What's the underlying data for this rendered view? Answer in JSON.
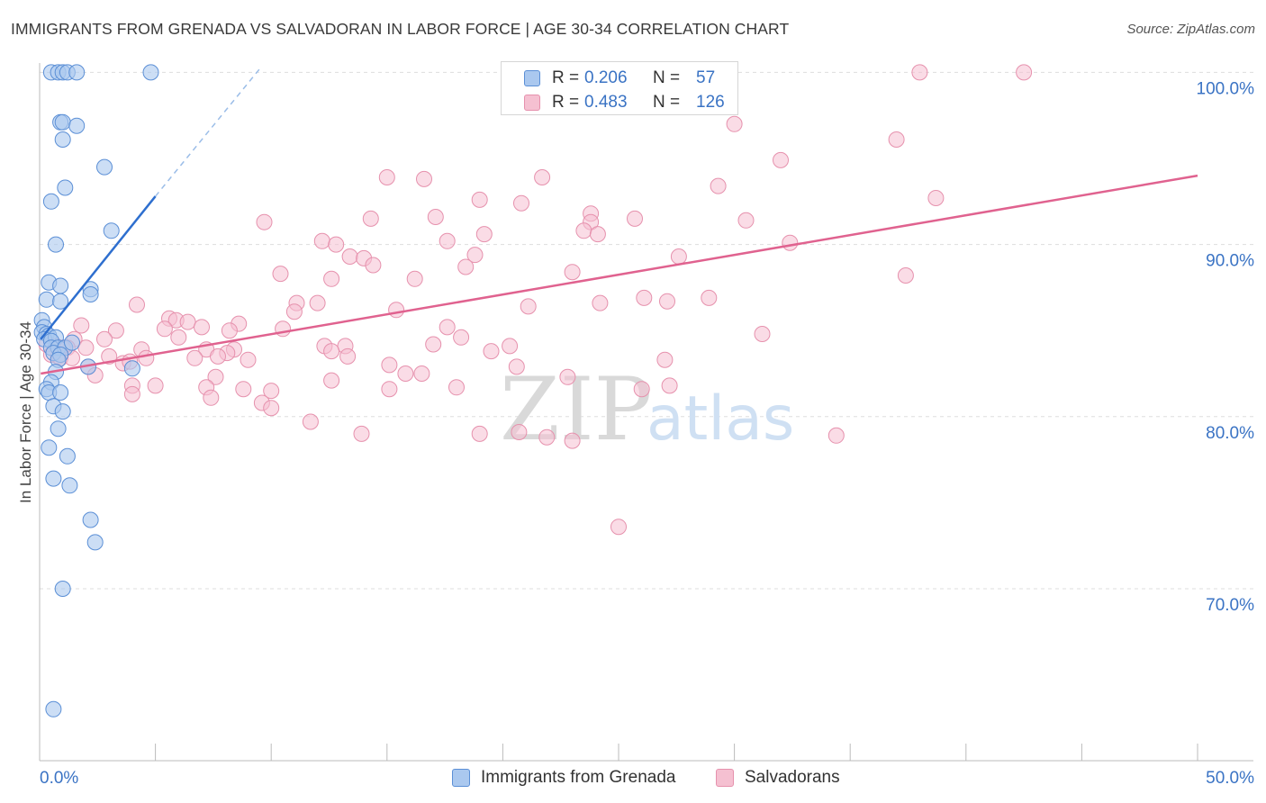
{
  "header": {
    "title": "IMMIGRANTS FROM GRENADA VS SALVADORAN IN LABOR FORCE | AGE 30-34 CORRELATION CHART",
    "source": "Source: ZipAtlas.com"
  },
  "watermark": {
    "zip": "ZIP",
    "atlas": "atlas"
  },
  "legend_top": {
    "r_label": "R =",
    "n_label": "N =",
    "rows": [
      {
        "r": "0.206",
        "n": "57"
      },
      {
        "r": "0.483",
        "n": "126"
      }
    ]
  },
  "colors": {
    "blue_fill": "#aac8ef",
    "blue_stroke": "#5b8fd6",
    "blue_line": "#2e6fcf",
    "pink_fill": "#f5c0d1",
    "pink_stroke": "#e691ad",
    "pink_line": "#e0628f",
    "axis_text": "#3a73c4",
    "grid": "#dddddd"
  },
  "chart_data": {
    "type": "scatter",
    "title": "IMMIGRANTS FROM GRENADA VS SALVADORAN IN LABOR FORCE | AGE 30-34 CORRELATION CHART",
    "xlabel": "",
    "ylabel": "In Labor Force | Age 30-34",
    "xlim": [
      0,
      50
    ],
    "ylim": [
      60,
      102
    ],
    "x_tick_labels": [
      "0.0%",
      "50.0%"
    ],
    "y_ticks": [
      70,
      80,
      90,
      100
    ],
    "y_tick_labels": [
      "70.0%",
      "80.0%",
      "90.0%",
      "100.0%"
    ],
    "grid": true,
    "legend_position": "bottom",
    "series": [
      {
        "name": "Immigrants from Grenada",
        "color": "blue",
        "R": 0.206,
        "N": 57,
        "trendline": {
          "x": [
            0.05,
            5.0
          ],
          "y": [
            84.5,
            92.8
          ]
        },
        "trendline_extension": {
          "x": [
            5.0,
            9.5
          ],
          "y": [
            92.8,
            100.2
          ]
        },
        "points": [
          [
            0.5,
            100
          ],
          [
            0.8,
            100
          ],
          [
            1.0,
            100
          ],
          [
            1.2,
            100
          ],
          [
            1.6,
            100
          ],
          [
            4.8,
            100
          ],
          [
            0.9,
            97.1
          ],
          [
            1.0,
            97.1
          ],
          [
            1.6,
            96.9
          ],
          [
            1.0,
            96.1
          ],
          [
            2.8,
            94.5
          ],
          [
            1.1,
            93.3
          ],
          [
            0.5,
            92.5
          ],
          [
            3.1,
            90.8
          ],
          [
            0.7,
            90.0
          ],
          [
            0.4,
            87.8
          ],
          [
            0.9,
            87.6
          ],
          [
            2.2,
            87.4
          ],
          [
            2.2,
            87.1
          ],
          [
            0.3,
            86.8
          ],
          [
            0.9,
            86.7
          ],
          [
            0.1,
            85.6
          ],
          [
            0.2,
            85.2
          ],
          [
            0.1,
            84.9
          ],
          [
            0.3,
            84.8
          ],
          [
            0.4,
            84.7
          ],
          [
            0.2,
            84.5
          ],
          [
            0.7,
            84.6
          ],
          [
            0.5,
            84.4
          ],
          [
            0.5,
            84.0
          ],
          [
            0.8,
            84.0
          ],
          [
            1.1,
            84.0
          ],
          [
            0.6,
            83.7
          ],
          [
            0.9,
            83.6
          ],
          [
            1.4,
            84.3
          ],
          [
            0.8,
            83.3
          ],
          [
            2.1,
            82.9
          ],
          [
            4.0,
            82.8
          ],
          [
            0.7,
            82.6
          ],
          [
            0.5,
            82.0
          ],
          [
            0.3,
            81.6
          ],
          [
            0.4,
            81.4
          ],
          [
            0.9,
            81.4
          ],
          [
            0.6,
            80.6
          ],
          [
            1.0,
            80.3
          ],
          [
            0.8,
            79.3
          ],
          [
            0.4,
            78.2
          ],
          [
            1.2,
            77.7
          ],
          [
            0.6,
            76.4
          ],
          [
            1.3,
            76.0
          ],
          [
            2.2,
            74.0
          ],
          [
            2.4,
            72.7
          ],
          [
            1.0,
            70.0
          ],
          [
            0.6,
            63.0
          ]
        ]
      },
      {
        "name": "Salvadorans",
        "color": "pink",
        "R": 0.483,
        "N": 126,
        "trendline": {
          "x": [
            0.05,
            50.0
          ],
          "y": [
            82.5,
            94.0
          ]
        },
        "points": [
          [
            38.0,
            100
          ],
          [
            42.5,
            100
          ],
          [
            30.0,
            97.0
          ],
          [
            37.0,
            96.1
          ],
          [
            32.0,
            94.9
          ],
          [
            15.0,
            93.9
          ],
          [
            16.6,
            93.8
          ],
          [
            21.7,
            93.9
          ],
          [
            29.3,
            93.4
          ],
          [
            38.7,
            92.7
          ],
          [
            19.0,
            92.6
          ],
          [
            20.8,
            92.4
          ],
          [
            23.8,
            91.8
          ],
          [
            17.1,
            91.6
          ],
          [
            14.3,
            91.5
          ],
          [
            9.7,
            91.3
          ],
          [
            23.8,
            91.3
          ],
          [
            25.7,
            91.5
          ],
          [
            30.5,
            91.4
          ],
          [
            23.5,
            90.8
          ],
          [
            24.1,
            90.6
          ],
          [
            19.2,
            90.6
          ],
          [
            17.6,
            90.2
          ],
          [
            12.2,
            90.2
          ],
          [
            32.4,
            90.1
          ],
          [
            12.8,
            90.0
          ],
          [
            18.8,
            89.4
          ],
          [
            13.4,
            89.3
          ],
          [
            14.0,
            89.2
          ],
          [
            27.6,
            89.3
          ],
          [
            14.4,
            88.8
          ],
          [
            18.4,
            88.7
          ],
          [
            23.0,
            88.4
          ],
          [
            10.4,
            88.3
          ],
          [
            12.6,
            88.0
          ],
          [
            16.2,
            88.0
          ],
          [
            37.4,
            88.2
          ],
          [
            26.1,
            86.9
          ],
          [
            28.9,
            86.9
          ],
          [
            27.1,
            86.7
          ],
          [
            11.1,
            86.6
          ],
          [
            12.0,
            86.6
          ],
          [
            21.1,
            86.4
          ],
          [
            24.2,
            86.6
          ],
          [
            4.2,
            86.5
          ],
          [
            15.4,
            86.2
          ],
          [
            11.0,
            86.1
          ],
          [
            5.6,
            85.7
          ],
          [
            5.9,
            85.6
          ],
          [
            6.4,
            85.5
          ],
          [
            8.6,
            85.4
          ],
          [
            1.8,
            85.3
          ],
          [
            3.3,
            85.0
          ],
          [
            5.4,
            85.1
          ],
          [
            7.0,
            85.2
          ],
          [
            10.5,
            85.1
          ],
          [
            8.2,
            85.0
          ],
          [
            17.6,
            85.2
          ],
          [
            31.2,
            84.8
          ],
          [
            18.2,
            84.6
          ],
          [
            6.0,
            84.6
          ],
          [
            1.5,
            84.5
          ],
          [
            2.8,
            84.5
          ],
          [
            0.3,
            84.2
          ],
          [
            0.7,
            84.1
          ],
          [
            1.0,
            84.0
          ],
          [
            1.2,
            84.0
          ],
          [
            2.0,
            84.0
          ],
          [
            4.4,
            83.9
          ],
          [
            8.4,
            83.9
          ],
          [
            17.0,
            84.2
          ],
          [
            12.3,
            84.1
          ],
          [
            13.2,
            84.1
          ],
          [
            20.3,
            84.1
          ],
          [
            7.2,
            83.9
          ],
          [
            12.6,
            83.8
          ],
          [
            19.5,
            83.8
          ],
          [
            8.1,
            83.7
          ],
          [
            0.5,
            83.6
          ],
          [
            0.8,
            83.5
          ],
          [
            0.9,
            83.4
          ],
          [
            1.4,
            83.4
          ],
          [
            3.0,
            83.5
          ],
          [
            4.6,
            83.4
          ],
          [
            6.7,
            83.4
          ],
          [
            9.0,
            83.3
          ],
          [
            13.3,
            83.5
          ],
          [
            7.7,
            83.5
          ],
          [
            27.0,
            83.3
          ],
          [
            3.6,
            83.1
          ],
          [
            3.9,
            83.2
          ],
          [
            15.1,
            83.0
          ],
          [
            20.6,
            82.9
          ],
          [
            2.1,
            82.9
          ],
          [
            2.4,
            82.4
          ],
          [
            15.8,
            82.5
          ],
          [
            16.5,
            82.5
          ],
          [
            7.6,
            82.3
          ],
          [
            22.8,
            82.3
          ],
          [
            12.6,
            82.1
          ],
          [
            4.0,
            81.8
          ],
          [
            5.0,
            81.8
          ],
          [
            7.2,
            81.7
          ],
          [
            8.8,
            81.6
          ],
          [
            15.1,
            81.6
          ],
          [
            18.0,
            81.7
          ],
          [
            27.2,
            81.8
          ],
          [
            10.0,
            81.5
          ],
          [
            26.0,
            81.6
          ],
          [
            4.0,
            81.3
          ],
          [
            7.4,
            81.1
          ],
          [
            9.6,
            80.8
          ],
          [
            10.0,
            80.5
          ],
          [
            11.7,
            79.7
          ],
          [
            13.9,
            79.0
          ],
          [
            19.0,
            79.0
          ],
          [
            20.7,
            79.1
          ],
          [
            21.9,
            78.8
          ],
          [
            23.0,
            78.6
          ],
          [
            34.4,
            78.9
          ],
          [
            25.0,
            73.6
          ]
        ]
      }
    ]
  },
  "legend_bottom": {
    "items": [
      {
        "label": "Immigrants from Grenada"
      },
      {
        "label": "Salvadorans"
      }
    ]
  }
}
